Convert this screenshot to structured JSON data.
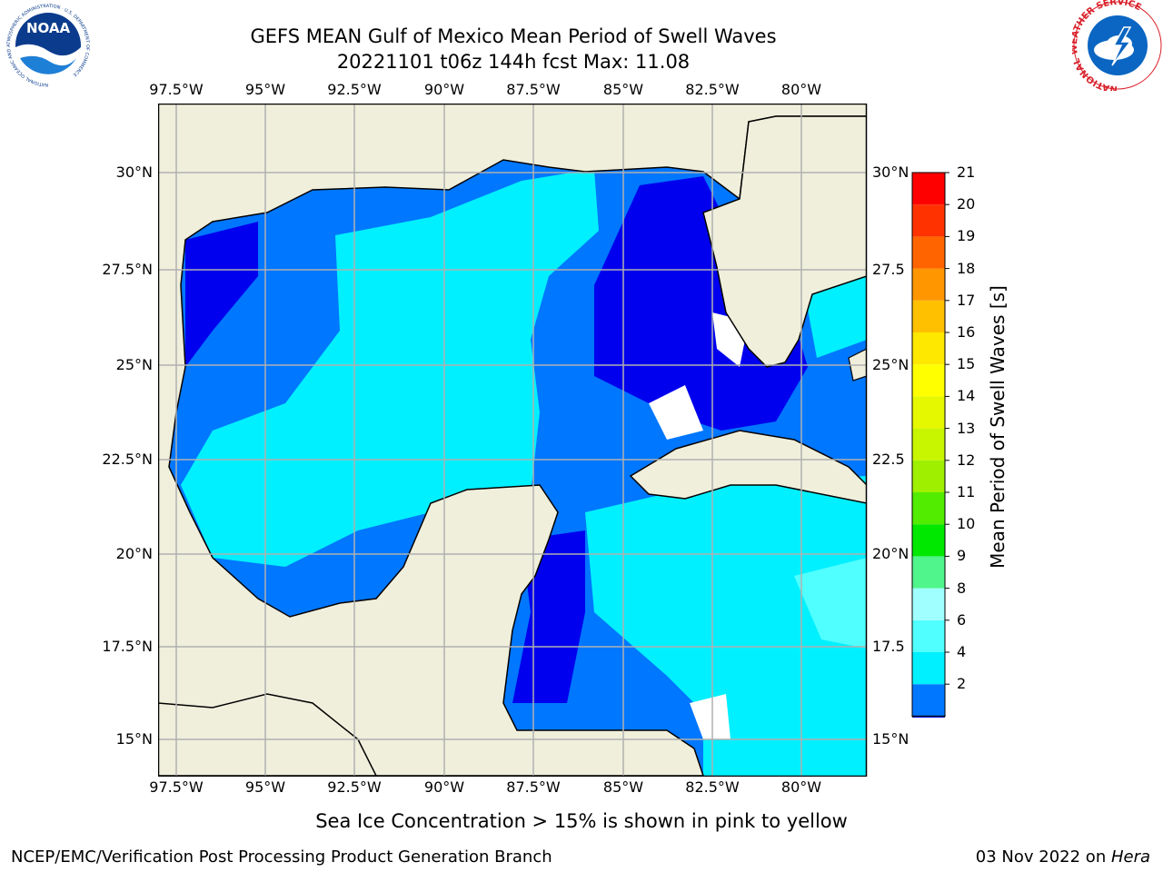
{
  "header": {
    "title_line1": "GEFS MEAN Gulf of Mexico Mean Period of Swell Waves",
    "title_line2": "20221101 t06z 144h fcst   Max: 11.08"
  },
  "map": {
    "lon_labels": [
      "97.5°W",
      "95°W",
      "92.5°W",
      "90°W",
      "87.5°W",
      "85°W",
      "82.5°W",
      "80°W"
    ],
    "lat_labels_left": [
      "30°N",
      "27.5°N",
      "25°N",
      "22.5°N",
      "20°N",
      "17.5°N",
      "15°N"
    ],
    "lat_labels_right": [
      "30°N",
      "27.5",
      "25°N",
      "22.5",
      "20°N",
      "17.5",
      "15°N"
    ],
    "land_color": "#efefdc",
    "grid_color": "#b0b0b0"
  },
  "colorbar": {
    "label": "Mean Period of Swell Waves [s]",
    "ticks": [
      "21",
      "20",
      "19",
      "18",
      "17",
      "16",
      "15",
      "14",
      "13",
      "12",
      "11",
      "10",
      "9",
      "8",
      "6",
      "4",
      "2"
    ],
    "levels": [
      2,
      4,
      6,
      8,
      9,
      10,
      11,
      12,
      13,
      14,
      15,
      16,
      17,
      18,
      19,
      20,
      21
    ],
    "colors": [
      "#0077ff",
      "#00f0ff",
      "#50ffff",
      "#a0ffff",
      "#50f58c",
      "#00e800",
      "#52ec00",
      "#9ef000",
      "#c8f500",
      "#e6f800",
      "#ffff00",
      "#ffe800",
      "#ffc000",
      "#ff9600",
      "#ff6400",
      "#ff3200",
      "#ff0000"
    ],
    "under_color": "#0000ee"
  },
  "footer": {
    "sea_ice_note": "Sea Ice Concentration > 15% is shown in pink to yellow",
    "left": "NCEP/EMC/Verification Post Processing Product Generation Branch",
    "right_date": "03 Nov 2022 on ",
    "right_host": "Hera"
  },
  "logos": {
    "noaa_text": "NOAA",
    "noaa_ring": "NATIONAL OCEANIC AND ATMOSPHERIC ADMINISTRATION · U.S. DEPARTMENT OF COMMERCE",
    "nws_ring": "NATIONAL WEATHER SERVICE"
  }
}
